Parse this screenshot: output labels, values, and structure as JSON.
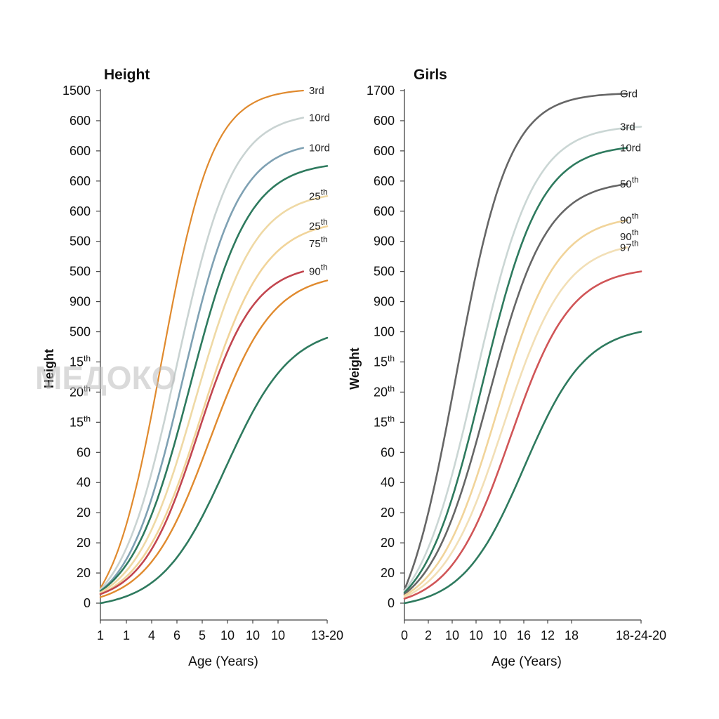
{
  "watermark": "МЕДОКО",
  "chart_data": [
    {
      "type": "line",
      "title": "Height",
      "ylabel": "Height",
      "xlabel": "Age (Years)",
      "x_ticks": [
        "1",
        "1",
        "4",
        "6",
        "5",
        "10",
        "10",
        "10",
        "13-20"
      ],
      "y_ticks": [
        {
          "base": "1500",
          "sup": ""
        },
        {
          "base": "600",
          "sup": ""
        },
        {
          "base": "600",
          "sup": ""
        },
        {
          "base": "600",
          "sup": ""
        },
        {
          "base": "600",
          "sup": ""
        },
        {
          "base": "500",
          "sup": ""
        },
        {
          "base": "500",
          "sup": ""
        },
        {
          "base": "900",
          "sup": ""
        },
        {
          "base": "500",
          "sup": ""
        },
        {
          "base": "15",
          "sup": "th"
        },
        {
          "base": "20",
          "sup": "th"
        },
        {
          "base": "15",
          "sup": "th"
        },
        {
          "base": "60",
          "sup": ""
        },
        {
          "base": "40",
          "sup": ""
        },
        {
          "base": "20",
          "sup": ""
        },
        {
          "base": "20",
          "sup": ""
        },
        {
          "base": "20",
          "sup": ""
        },
        {
          "base": "0",
          "sup": ""
        }
      ],
      "series": [
        {
          "label": {
            "base": "3rd",
            "sup": ""
          },
          "color": "#E08A2E",
          "width": 2.2,
          "start": 0.5,
          "end": 17.0,
          "end_x": 7.6,
          "mid": 2.3,
          "k": 1.05
        },
        {
          "label": {
            "base": "10rd",
            "sup": ""
          },
          "color": "#C9D3D2",
          "width": 2.6,
          "start": 0.45,
          "end": 16.1,
          "end_x": 7.6,
          "mid": 2.85,
          "k": 0.95
        },
        {
          "label": {
            "base": "10rd",
            "sup": ""
          },
          "color": "#7FA1B3",
          "width": 2.6,
          "start": 0.4,
          "end": 15.1,
          "end_x": 7.6,
          "mid": 3.1,
          "k": 0.95
        },
        {
          "label": null,
          "color": "#2E7A5E",
          "width": 2.6,
          "start": 0.4,
          "end": 14.5,
          "end_x": 8.5,
          "mid": 3.35,
          "k": 0.9
        },
        {
          "label": {
            "base": "25",
            "sup": "th"
          },
          "color": "#EFD9A5",
          "width": 2.6,
          "start": 0.35,
          "end": 13.5,
          "end_x": 8.5,
          "mid": 3.55,
          "k": 0.88
        },
        {
          "label": {
            "base": "25",
            "sup": "th"
          },
          "color": "#F1D49A",
          "width": 2.6,
          "start": 0.3,
          "end": 12.5,
          "end_x": 8.5,
          "mid": 3.8,
          "k": 0.85
        },
        {
          "label": {
            "base": "90",
            "sup": "th"
          },
          "color": "#C2464F",
          "width": 2.6,
          "start": 0.3,
          "end": 11.0,
          "end_x": 7.6,
          "mid": 3.65,
          "k": 0.95
        },
        {
          "label": null,
          "color": "#E08A2E",
          "width": 2.4,
          "start": 0.2,
          "end": 10.7,
          "end_x": 8.5,
          "mid": 4.1,
          "k": 0.85
        },
        {
          "label": null,
          "color": "#2E7A5E",
          "width": 2.6,
          "start": 0.0,
          "end": 8.8,
          "end_x": 8.5,
          "mid": 4.7,
          "k": 0.82
        }
      ],
      "extra_labels": [
        {
          "base": "75",
          "sup": "th"
        }
      ],
      "ylim": [
        0,
        17
      ],
      "xlim": [
        0,
        8.5
      ]
    },
    {
      "type": "line",
      "title": "Girls",
      "ylabel": "Weight",
      "xlabel": "Age (Years)",
      "x_ticks": [
        "0",
        "2",
        "10",
        "10",
        "10",
        "16",
        "12",
        "18",
        "18-24-20"
      ],
      "y_ticks": [
        {
          "base": "1700",
          "sup": ""
        },
        {
          "base": "600",
          "sup": ""
        },
        {
          "base": "600",
          "sup": ""
        },
        {
          "base": "600",
          "sup": ""
        },
        {
          "base": "600",
          "sup": ""
        },
        {
          "base": "900",
          "sup": ""
        },
        {
          "base": "500",
          "sup": ""
        },
        {
          "base": "900",
          "sup": ""
        },
        {
          "base": "100",
          "sup": ""
        },
        {
          "base": "15",
          "sup": "th"
        },
        {
          "base": "20",
          "sup": "th"
        },
        {
          "base": "15",
          "sup": "th"
        },
        {
          "base": "60",
          "sup": ""
        },
        {
          "base": "40",
          "sup": ""
        },
        {
          "base": "20",
          "sup": ""
        },
        {
          "base": "20",
          "sup": ""
        },
        {
          "base": "20",
          "sup": ""
        },
        {
          "base": "0",
          "sup": ""
        }
      ],
      "series": [
        {
          "label": {
            "base": "Grd",
            "sup": ""
          },
          "color": "#666666",
          "width": 2.6,
          "start": 0.45,
          "end": 16.9,
          "end_x": 8.0,
          "mid": 1.85,
          "k": 1.05
        },
        {
          "label": {
            "base": "3rd",
            "sup": ""
          },
          "color": "#CAD6D4",
          "width": 2.6,
          "start": 0.4,
          "end": 15.8,
          "end_x": 8.5,
          "mid": 2.55,
          "k": 0.95
        },
        {
          "label": {
            "base": "10rd",
            "sup": ""
          },
          "color": "#2E7A5E",
          "width": 2.6,
          "start": 0.35,
          "end": 15.1,
          "end_x": 8.0,
          "mid": 2.8,
          "k": 0.95
        },
        {
          "label": {
            "base": "50",
            "sup": "th"
          },
          "color": "#666666",
          "width": 2.6,
          "start": 0.3,
          "end": 13.9,
          "end_x": 8.0,
          "mid": 3.0,
          "k": 0.95
        },
        {
          "label": {
            "base": "90",
            "sup": "th"
          },
          "color": "#F1D49A",
          "width": 2.6,
          "start": 0.25,
          "end": 12.7,
          "end_x": 8.0,
          "mid": 3.3,
          "k": 0.92
        },
        {
          "label": {
            "base": "97",
            "sup": "th"
          },
          "color": "#F2DFB6",
          "width": 2.6,
          "start": 0.2,
          "end": 11.8,
          "end_x": 8.0,
          "mid": 3.55,
          "k": 0.9
        },
        {
          "label": null,
          "color": "#D05557",
          "width": 2.6,
          "start": 0.15,
          "end": 11.0,
          "end_x": 8.5,
          "mid": 3.8,
          "k": 0.92
        },
        {
          "label": null,
          "color": "#2E7A5E",
          "width": 2.6,
          "start": 0.0,
          "end": 9.0,
          "end_x": 8.5,
          "mid": 4.3,
          "k": 0.9
        }
      ],
      "extra_labels": [
        {
          "base": "90",
          "sup": "th"
        }
      ],
      "ylim": [
        0,
        17
      ],
      "xlim": [
        0,
        8.5
      ]
    }
  ]
}
